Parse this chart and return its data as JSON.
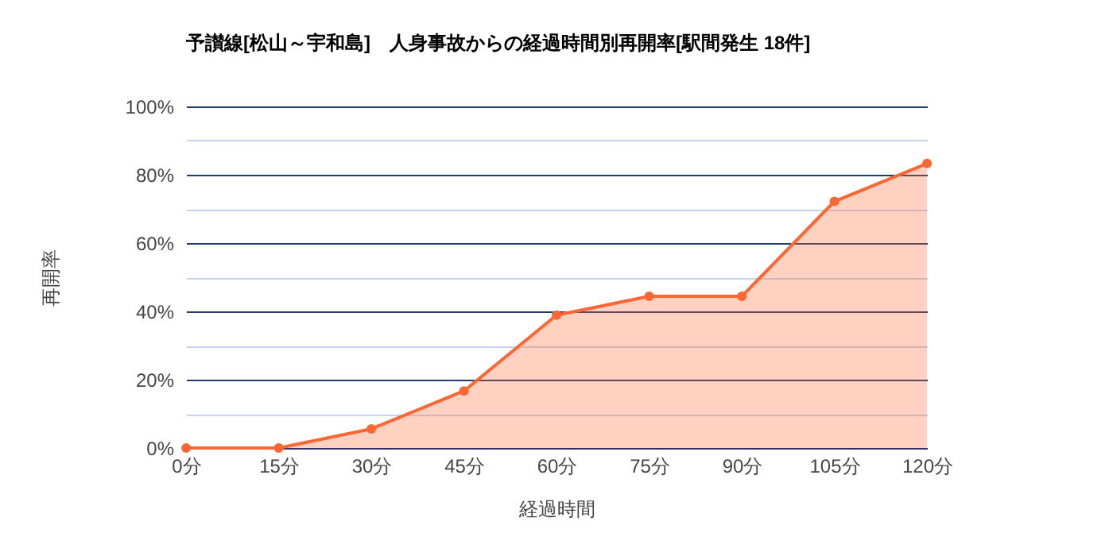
{
  "chart_data": {
    "type": "area",
    "title": "予讃線[松山～宇和島]　人身事故からの経過時間別再開率[駅間発生 18件]",
    "xlabel": "経過時間",
    "ylabel": "再開率",
    "categories": [
      "0分",
      "15分",
      "30分",
      "45分",
      "60分",
      "75分",
      "90分",
      "105分",
      "120分"
    ],
    "series": [
      {
        "color": "#ff6633",
        "values": [
          0,
          0,
          5.6,
          16.7,
          38.9,
          44.4,
          44.4,
          72.2,
          83.3
        ]
      }
    ],
    "ylim": [
      0,
      100
    ],
    "yticks": [
      {
        "value": 0,
        "label": "0%"
      },
      {
        "value": 10,
        "label": null
      },
      {
        "value": 20,
        "label": "20%"
      },
      {
        "value": 30,
        "label": null
      },
      {
        "value": 40,
        "label": "40%"
      },
      {
        "value": 50,
        "label": null
      },
      {
        "value": 60,
        "label": "60%"
      },
      {
        "value": 70,
        "label": null
      },
      {
        "value": 80,
        "label": "80%"
      },
      {
        "value": 90,
        "label": null
      },
      {
        "value": 100,
        "label": "100%"
      }
    ],
    "grid": true,
    "marker": "circle"
  }
}
